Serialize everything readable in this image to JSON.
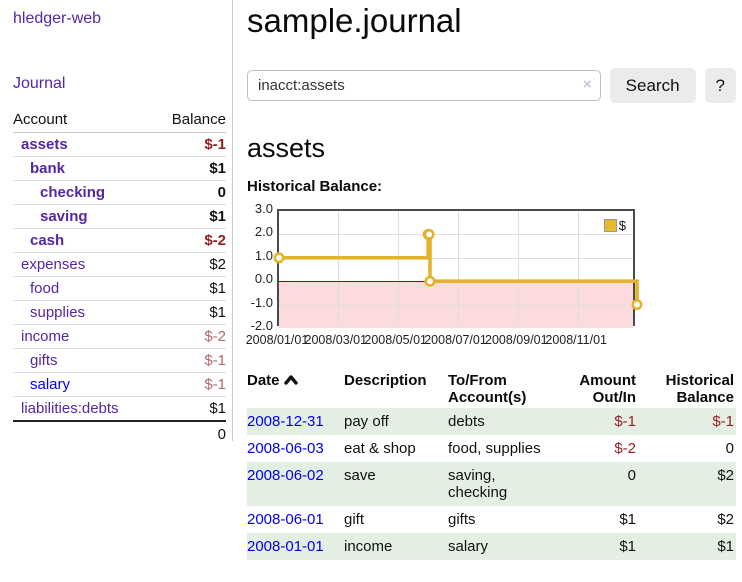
{
  "colors": {
    "link_purple": "#5526a5",
    "link_blue": "#0000ee",
    "negative_strong": "#941f1f",
    "negative_dim": "#b36a6a",
    "row_highlight_green": "#e3efe3",
    "chart_line_gold": "#e4b32e",
    "chart_negative_bg": "#fbdbdb",
    "chart_zero_line": "#990000"
  },
  "sidebar": {
    "app_title": "hledger-web",
    "nav_journal": "Journal",
    "accounts": {
      "col_account": "Account",
      "col_balance": "Balance",
      "rows": [
        {
          "name": "assets",
          "level": 1,
          "bold": true,
          "link": "purple",
          "balance": "$-1",
          "balance_style": "negstrong"
        },
        {
          "name": "bank",
          "level": 2,
          "bold": true,
          "link": "purple",
          "balance": "$1",
          "balance_style": "normal"
        },
        {
          "name": "checking",
          "level": 3,
          "bold": true,
          "link": "purple",
          "balance": "0",
          "balance_style": "normal"
        },
        {
          "name": "saving",
          "level": 3,
          "bold": true,
          "link": "purple",
          "balance": "$1",
          "balance_style": "normal"
        },
        {
          "name": "cash",
          "level": 2,
          "bold": true,
          "link": "purple",
          "balance": "$-2",
          "balance_style": "negstrong"
        },
        {
          "name": "expenses",
          "level": 1,
          "bold": false,
          "link": "purple",
          "balance": "$2",
          "balance_style": "normal"
        },
        {
          "name": "food",
          "level": 2,
          "bold": false,
          "link": "purple",
          "balance": "$1",
          "balance_style": "normal"
        },
        {
          "name": "supplies",
          "level": 2,
          "bold": false,
          "link": "purple",
          "balance": "$1",
          "balance_style": "normal"
        },
        {
          "name": "income",
          "level": 1,
          "bold": false,
          "link": "purple",
          "balance": "$-2",
          "balance_style": "negdim"
        },
        {
          "name": "gifts",
          "level": 2,
          "bold": false,
          "link": "purple",
          "balance": "$-1",
          "balance_style": "negdim"
        },
        {
          "name": "salary",
          "level": 2,
          "bold": false,
          "link": "blue",
          "balance": "$-1",
          "balance_style": "negdim"
        },
        {
          "name": "liabilities:debts",
          "level": 1,
          "bold": false,
          "link": "purple",
          "balance": "$1",
          "balance_style": "normal"
        }
      ],
      "total": "0"
    }
  },
  "main": {
    "title": "sample.journal",
    "search": {
      "value": "inacct:assets",
      "clear_icon": "×",
      "search_button": "Search",
      "help_button": "?"
    },
    "account_heading": "assets",
    "chart_heading": "Historical Balance:"
  },
  "chart_data": {
    "type": "line",
    "step": true,
    "title": "Historical Balance",
    "series": [
      {
        "name": "$",
        "x": [
          "2008-01-01",
          "2008-06-01",
          "2008-06-02",
          "2008-06-03",
          "2008-12-31"
        ],
        "y": [
          1,
          2,
          2,
          0,
          -1
        ]
      }
    ],
    "point_days": [
      0,
      152,
      153,
      154,
      365
    ],
    "x_range_days": [
      0,
      365
    ],
    "x_tick_days": [
      0,
      60,
      121,
      182,
      244,
      305
    ],
    "x_tick_labels": [
      "2008/01/01",
      "2008/03/01",
      "2008/05/01",
      "2008/07/01",
      "2008/09/01",
      "2008/11/01"
    ],
    "y_ticks": [
      "3.0",
      "2.0",
      "1.0",
      "0.0",
      "-1.0",
      "-2.0"
    ],
    "y_tick_values": [
      3,
      2,
      1,
      0,
      -1,
      -2
    ],
    "ylim": [
      -2,
      3
    ],
    "grid": true,
    "negative_region_shaded": true,
    "legend": {
      "label": "$",
      "position": "top-right"
    }
  },
  "register": {
    "headers": {
      "date": "Date",
      "description": "Description",
      "account": "To/From Account(s)",
      "amount": "Amount Out/In",
      "balance": "Historical Balance"
    },
    "rows": [
      {
        "date": "2008-12-31",
        "description": "pay off",
        "accounts": "debts",
        "amount": "$-1",
        "amount_negative": true,
        "balance": "$-1",
        "balance_negative": true,
        "highlight": true
      },
      {
        "date": "2008-06-03",
        "description": "eat & shop",
        "accounts": "food, supplies",
        "amount": "$-2",
        "amount_negative": true,
        "balance": "0",
        "balance_negative": false,
        "highlight": false
      },
      {
        "date": "2008-06-02",
        "description": "save",
        "accounts": "saving, checking",
        "amount": "0",
        "amount_negative": false,
        "balance": "$2",
        "balance_negative": false,
        "highlight": true
      },
      {
        "date": "2008-06-01",
        "description": "gift",
        "accounts": "gifts",
        "amount": "$1",
        "amount_negative": false,
        "balance": "$2",
        "balance_negative": false,
        "highlight": false
      },
      {
        "date": "2008-01-01",
        "description": "income",
        "accounts": "salary",
        "amount": "$1",
        "amount_negative": false,
        "balance": "$1",
        "balance_negative": false,
        "highlight": true
      }
    ]
  }
}
